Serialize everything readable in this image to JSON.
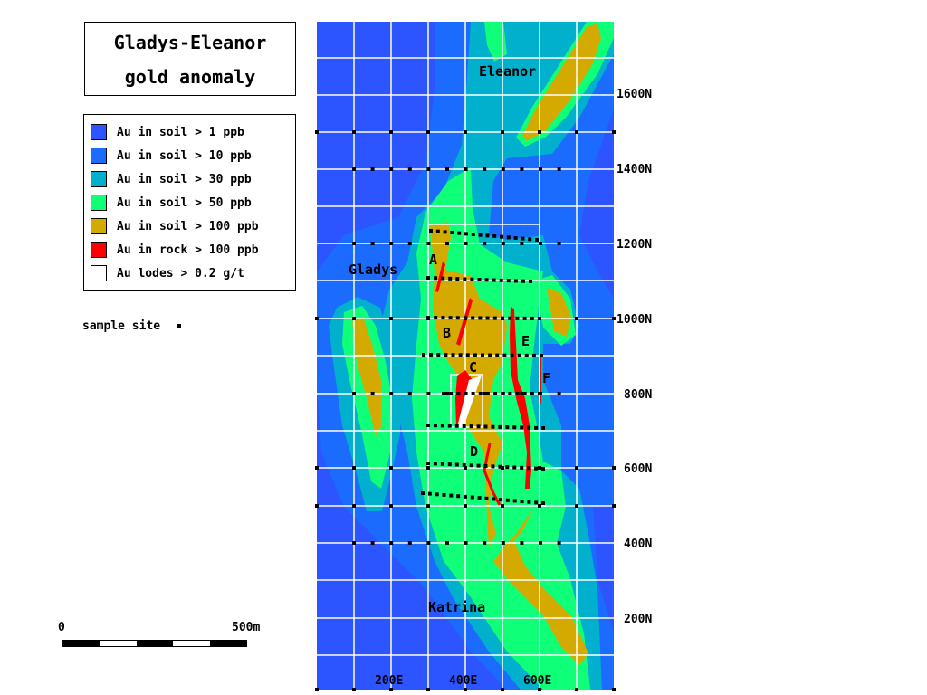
{
  "title": {
    "line1": "Gladys-Eleanor",
    "line2": "gold anomaly"
  },
  "legend": [
    {
      "label": "Au in soil > 1 ppb",
      "color": "#2d55ff"
    },
    {
      "label": "Au in soil > 10 ppb",
      "color": "#1b6bff"
    },
    {
      "label": "Au in soil > 30 ppb",
      "color": "#00b0cc"
    },
    {
      "label": "Au in soil > 50 ppb",
      "color": "#10ff78"
    },
    {
      "label": "Au in soil > 100 ppb",
      "color": "#d4aa00"
    },
    {
      "label": "Au in rock > 100 ppb",
      "color": "#ff0000"
    },
    {
      "label": "Au lodes > 0.2 g/t",
      "color": "#ffffff"
    }
  ],
  "sample_site_label": "sample site",
  "scale": {
    "start": "0",
    "end": "500m"
  },
  "places": {
    "eleanor": "Eleanor",
    "gladys": "Gladys",
    "katrina": "Katrina"
  },
  "lodes": {
    "a": "A",
    "b": "B",
    "c": "C",
    "d": "D",
    "e": "E",
    "f": "F"
  },
  "northings": [
    "1600N",
    "1400N",
    "1200N",
    "1000N",
    "800N",
    "600N",
    "400N",
    "200N"
  ],
  "eastings": [
    "200E",
    "400E",
    "600E"
  ]
}
